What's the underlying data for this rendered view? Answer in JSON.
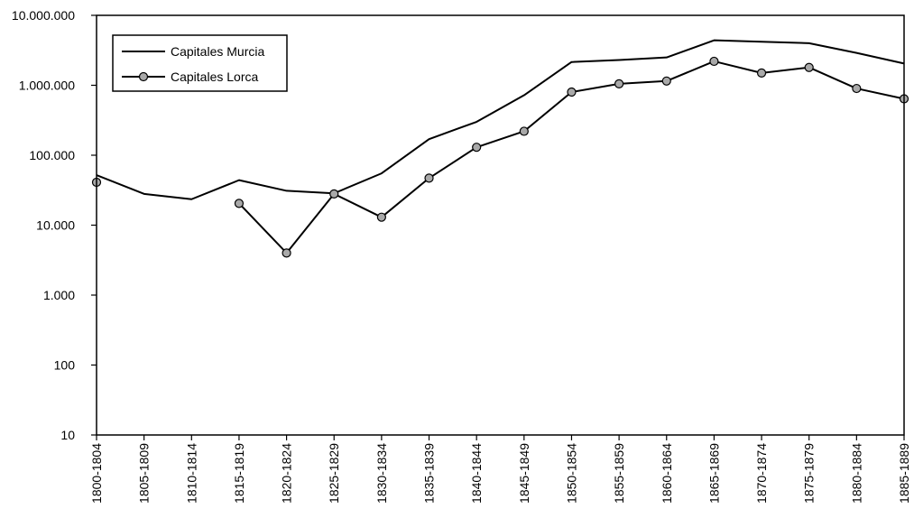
{
  "chart_data": {
    "type": "line",
    "title": "",
    "xlabel": "",
    "ylabel": "",
    "y_scale": "log",
    "ylim": [
      10,
      10000000
    ],
    "y_ticks": [
      10,
      100,
      1000,
      10000,
      100000,
      1000000,
      10000000
    ],
    "y_tick_labels": [
      "10",
      "100",
      "1.000",
      "10.000",
      "100.000",
      "1.000.000",
      "10.000.000"
    ],
    "categories": [
      "1800-1804",
      "1805-1809",
      "1810-1814",
      "1815-1819",
      "1820-1824",
      "1825-1829",
      "1830-1834",
      "1835-1839",
      "1840-1844",
      "1845-1849",
      "1850-1854",
      "1855-1859",
      "1860-1864",
      "1865-1869",
      "1870-1874",
      "1875-1879",
      "1880-1884",
      "1885-1889"
    ],
    "legend_position": "top-left",
    "grid": false,
    "series": [
      {
        "name": "Capitales Murcia",
        "marker": "none",
        "color": "#000000",
        "values": [
          52000,
          28000,
          23500,
          44000,
          31000,
          28500,
          55000,
          170000,
          300000,
          720000,
          2150000,
          2300000,
          2500000,
          4400000,
          4200000,
          4000000,
          2900000,
          2050000
        ]
      },
      {
        "name": "Capitales Lorca",
        "marker": "circle",
        "color": "#000000",
        "marker_fill": "#a9a9a9",
        "values": [
          41000,
          null,
          null,
          20500,
          4000,
          28000,
          13000,
          47000,
          130000,
          220000,
          800000,
          1050000,
          1150000,
          2200000,
          1500000,
          1800000,
          900000,
          640000
        ]
      }
    ]
  }
}
